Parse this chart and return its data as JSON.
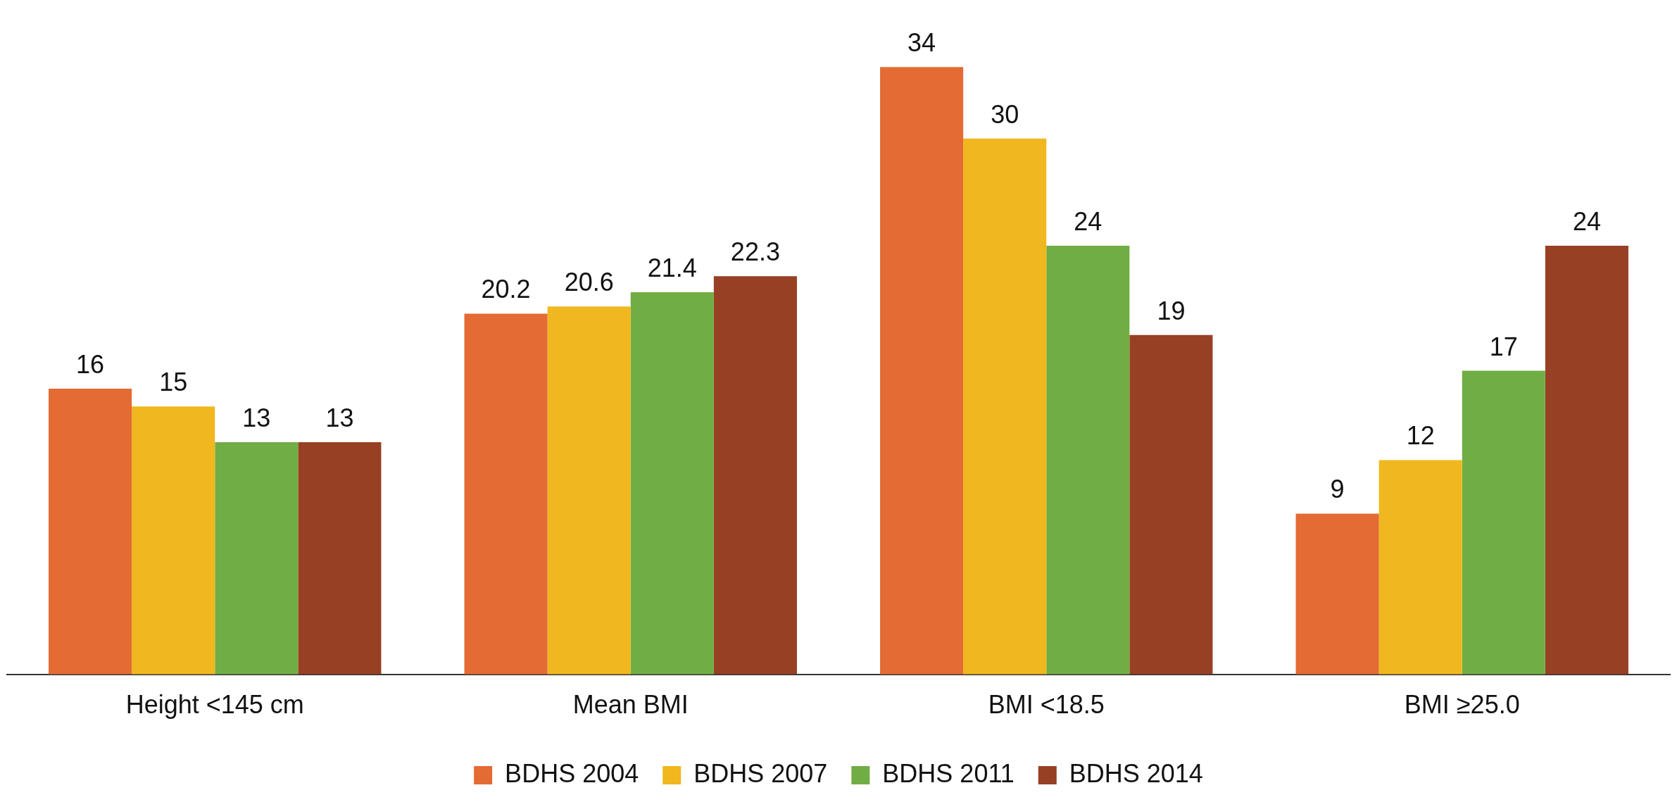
{
  "chart_data": {
    "type": "bar",
    "categories": [
      "Height <145 cm",
      "Mean BMI",
      "BMI <18.5",
      "BMI ≥25.0"
    ],
    "series": [
      {
        "name": "BDHS 2004",
        "color": "#e46b33",
        "values": [
          16,
          20.2,
          34,
          9
        ]
      },
      {
        "name": "BDHS 2007",
        "color": "#f0b71e",
        "values": [
          15,
          20.6,
          30,
          12
        ]
      },
      {
        "name": "BDHS 2011",
        "color": "#70ad44",
        "values": [
          13,
          21.4,
          24,
          17
        ]
      },
      {
        "name": "BDHS 2014",
        "color": "#974023",
        "values": [
          13,
          22.3,
          19,
          24
        ]
      }
    ],
    "data_labels": true,
    "grid": false,
    "legend": "bottom",
    "tick_labels": "x"
  }
}
